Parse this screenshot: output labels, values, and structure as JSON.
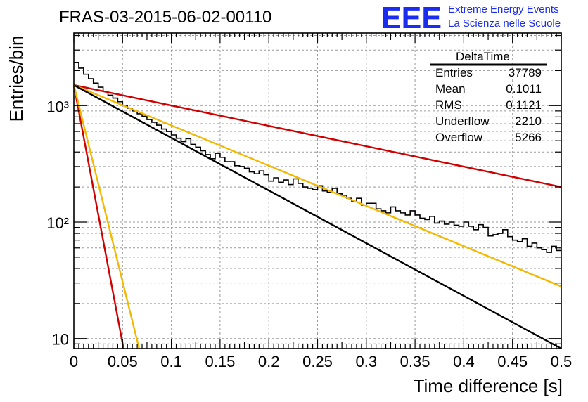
{
  "plot_title": "FRAS-03-2015-06-02-00110",
  "logo": {
    "mark": "EEE",
    "line1": "Extreme Energy Events",
    "line2": "La Scienza nelle Scuole"
  },
  "stats": {
    "title": "DeltaTime",
    "rows": [
      {
        "label": "Entries",
        "value": "37789"
      },
      {
        "label": "Mean",
        "value": "0.1011"
      },
      {
        "label": "RMS",
        "value": "0.1121"
      },
      {
        "label": "Underflow",
        "value": "2210"
      },
      {
        "label": "Overflow",
        "value": "5266"
      }
    ]
  },
  "chart_data": {
    "type": "line",
    "title": "FRAS-03-2015-06-02-00110",
    "xlabel": "Time difference [s]",
    "ylabel": "Entries/bin",
    "xlim": [
      0,
      0.5
    ],
    "ylim": [
      8.2,
      4200
    ],
    "y_scale": "log",
    "grid": true,
    "x_ticks": [
      0,
      0.05,
      0.1,
      0.15,
      0.2,
      0.25,
      0.3,
      0.35,
      0.4,
      0.45,
      0.5
    ],
    "x_tick_labels": [
      "0",
      "0.05",
      "0.1",
      "0.15",
      "0.2",
      "0.25",
      "0.3",
      "0.35",
      "0.4",
      "0.45",
      "0.5"
    ],
    "y_ticks": [
      10,
      100,
      1000
    ],
    "y_tick_labels": [
      "10",
      "10²",
      "10³"
    ],
    "histogram": {
      "name": "DeltaTime",
      "color": "#000000",
      "bin_width": 0.005,
      "x_start": 0,
      "values": [
        2350,
        2100,
        1860,
        1700,
        1560,
        1440,
        1330,
        1230,
        1160,
        1080,
        1000,
        950,
        900,
        850,
        810,
        760,
        720,
        680,
        630,
        600,
        560,
        525,
        490,
        520,
        465,
        440,
        410,
        380,
        350,
        390,
        360,
        330,
        330,
        305,
        300,
        290,
        270,
        260,
        275,
        255,
        225,
        240,
        220,
        230,
        210,
        235,
        215,
        200,
        195,
        190,
        205,
        185,
        180,
        195,
        175,
        170,
        160,
        150,
        160,
        140,
        145,
        145,
        130,
        125,
        120,
        135,
        125,
        120,
        115,
        125,
        115,
        108,
        105,
        112,
        98,
        102,
        96,
        100,
        94,
        92,
        100,
        92,
        86,
        95,
        90,
        76,
        78,
        80,
        86,
        75,
        70,
        68,
        72,
        62,
        66,
        60,
        58,
        55,
        62,
        57
      ]
    },
    "series": [
      {
        "color": "#d00000",
        "x": [
          0,
          0.5
        ],
        "y": [
          1500,
          200
        ]
      },
      {
        "color": "#f5b800",
        "x": [
          0,
          0.5
        ],
        "y": [
          1500,
          28
        ]
      },
      {
        "color": "#000000",
        "x": [
          0,
          0.5
        ],
        "y": [
          1500,
          8.2
        ]
      },
      {
        "color": "#d00000",
        "x": [
          0,
          0.051
        ],
        "y": [
          1500,
          8.2
        ]
      },
      {
        "color": "#f5b800",
        "x": [
          0,
          0.067
        ],
        "y": [
          1500,
          8.2
        ]
      }
    ]
  }
}
